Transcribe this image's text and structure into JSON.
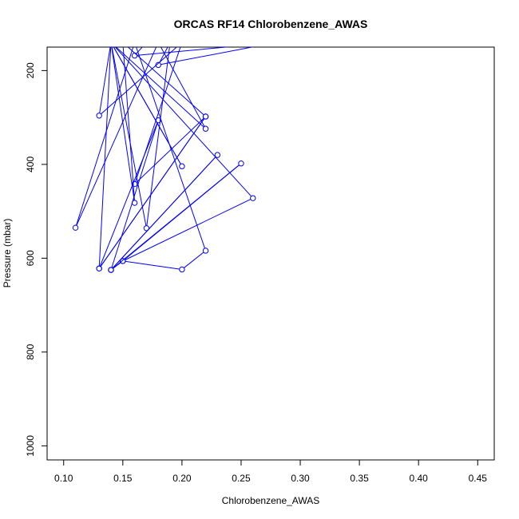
{
  "chart_data": {
    "type": "line",
    "title": "ORCAS RF14 Chlorobenzene_AWAS",
    "xlabel": "Chlorobenzene_AWAS",
    "ylabel": "Pressure (mbar)",
    "xlim": [
      0.1,
      0.45
    ],
    "ylim": [
      1030,
      150
    ],
    "y_reversed": true,
    "xticks": [
      0.1,
      0.15,
      0.2,
      0.25,
      0.3,
      0.35,
      0.4,
      0.45
    ],
    "xtick_labels": [
      "0.10",
      "0.15",
      "0.20",
      "0.25",
      "0.30",
      "0.35",
      "0.40",
      "0.45"
    ],
    "yticks": [
      200,
      400,
      600,
      800,
      1000
    ],
    "ytick_labels": [
      "200",
      "400",
      "600",
      "800",
      "1000"
    ],
    "grid": false,
    "series_color": "#0000ff",
    "series": [
      {
        "points": [
          [
            0.14,
            625
          ],
          [
            0.15,
            606
          ],
          [
            0.2,
            624
          ],
          [
            0.22,
            584
          ],
          [
            0.16,
            140
          ],
          [
            0.11,
            535
          ],
          [
            0.18,
            140
          ],
          [
            0.22,
            324
          ],
          [
            0.14,
            140
          ],
          [
            0.16,
            482
          ],
          [
            0.15,
            140
          ],
          [
            0.22,
            298
          ],
          [
            0.13,
            622
          ],
          [
            0.18,
            306
          ],
          [
            0.14,
            625
          ],
          [
            0.23,
            380
          ],
          [
            0.14,
            625
          ],
          [
            0.25,
            398
          ],
          [
            0.15,
            606
          ],
          [
            0.26,
            472
          ],
          [
            0.14,
            140
          ],
          [
            0.13,
            296
          ],
          [
            0.2,
            140
          ],
          [
            0.16,
            442
          ],
          [
            0.22,
            298
          ],
          [
            0.13,
            622
          ],
          [
            0.14,
            140
          ],
          [
            0.2,
            404
          ],
          [
            0.14,
            140
          ],
          [
            0.17,
            536
          ],
          [
            0.19,
            140
          ],
          [
            0.18,
            188
          ],
          [
            0.28,
            140
          ],
          [
            0.16,
            168
          ],
          [
            0.17,
            140
          ]
        ]
      }
    ]
  }
}
